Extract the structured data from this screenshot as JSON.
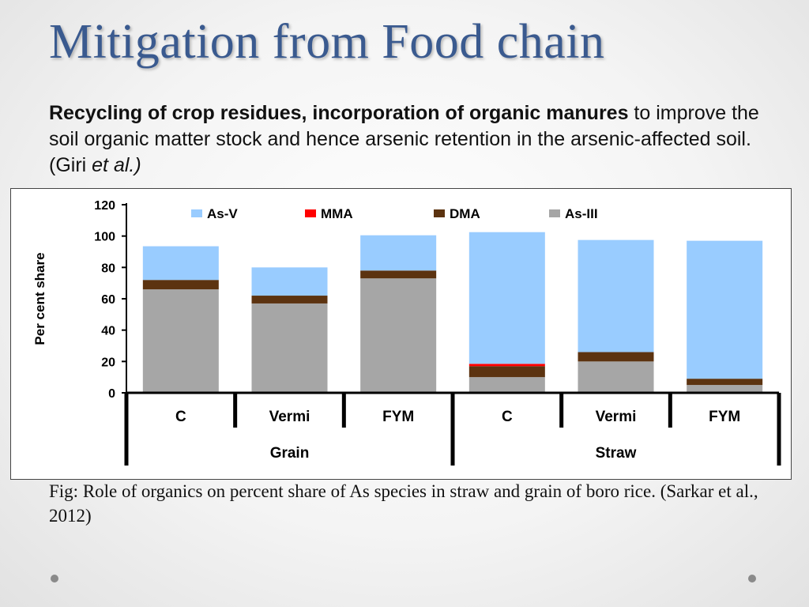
{
  "slide": {
    "title": "Mitigation from Food chain",
    "intro": {
      "bold": "Recycling of crop residues, incorporation of organic manures",
      "text1": " to improve the soil organic matter stock and hence arsenic retention in the arsenic-affected soil. (Giri ",
      "italic": "et al.)",
      "text2": ""
    },
    "caption": "Fig: Role of organics on percent share of As species in straw and grain of boro rice. (Sarkar et al., 2012)"
  },
  "chart_data": {
    "type": "bar",
    "stacked": true,
    "categories": [
      "C",
      "Vermi",
      "FYM",
      "C",
      "Vermi",
      "FYM"
    ],
    "groups": [
      {
        "label": "Grain",
        "categories": [
          "C",
          "Vermi",
          "FYM"
        ]
      },
      {
        "label": "Straw",
        "categories": [
          "C",
          "Vermi",
          "FYM"
        ]
      }
    ],
    "series": [
      {
        "name": "As-III",
        "color": "#a6a6a6",
        "values": [
          66,
          57,
          73,
          10,
          20,
          5
        ]
      },
      {
        "name": "DMA",
        "color": "#5c3310",
        "values": [
          6,
          5,
          5,
          7,
          6,
          4
        ]
      },
      {
        "name": "MMA",
        "color": "#ff0000",
        "values": [
          0,
          0,
          0,
          1.5,
          0,
          0
        ]
      },
      {
        "name": "As-V",
        "color": "#99ccff",
        "values": [
          21.5,
          18,
          22.5,
          84,
          71.5,
          88
        ]
      }
    ],
    "legend_order": [
      "As-V",
      "MMA",
      "DMA",
      "As-III"
    ],
    "legend_position": "top",
    "title": "",
    "xlabel": "",
    "ylabel": "Per cent share",
    "ylim": [
      0,
      120
    ],
    "yticks": [
      0,
      20,
      40,
      60,
      80,
      100,
      120
    ],
    "grid": false
  }
}
